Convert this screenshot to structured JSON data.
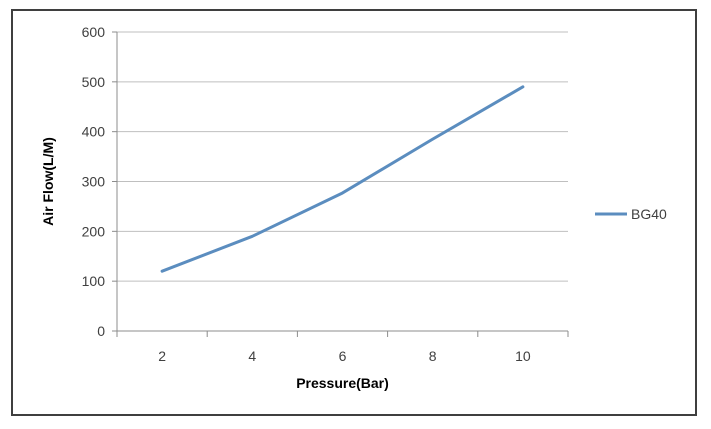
{
  "chart_data": {
    "type": "line",
    "title": "",
    "xlabel": "Pressure(Bar)",
    "ylabel": "Air Flow(L/M)",
    "x": [
      2,
      4,
      6,
      8,
      10
    ],
    "xticks": [
      "2",
      "4",
      "6",
      "8",
      "10"
    ],
    "yticks": [
      "0",
      "100",
      "200",
      "300",
      "400",
      "500",
      "600"
    ],
    "ylim": [
      0,
      600
    ],
    "grid": "horizontal",
    "legend_position": "right",
    "series": [
      {
        "name": "BG40",
        "color": "#5b8dbf",
        "values": [
          120,
          190,
          277,
          385,
          490
        ]
      }
    ]
  }
}
